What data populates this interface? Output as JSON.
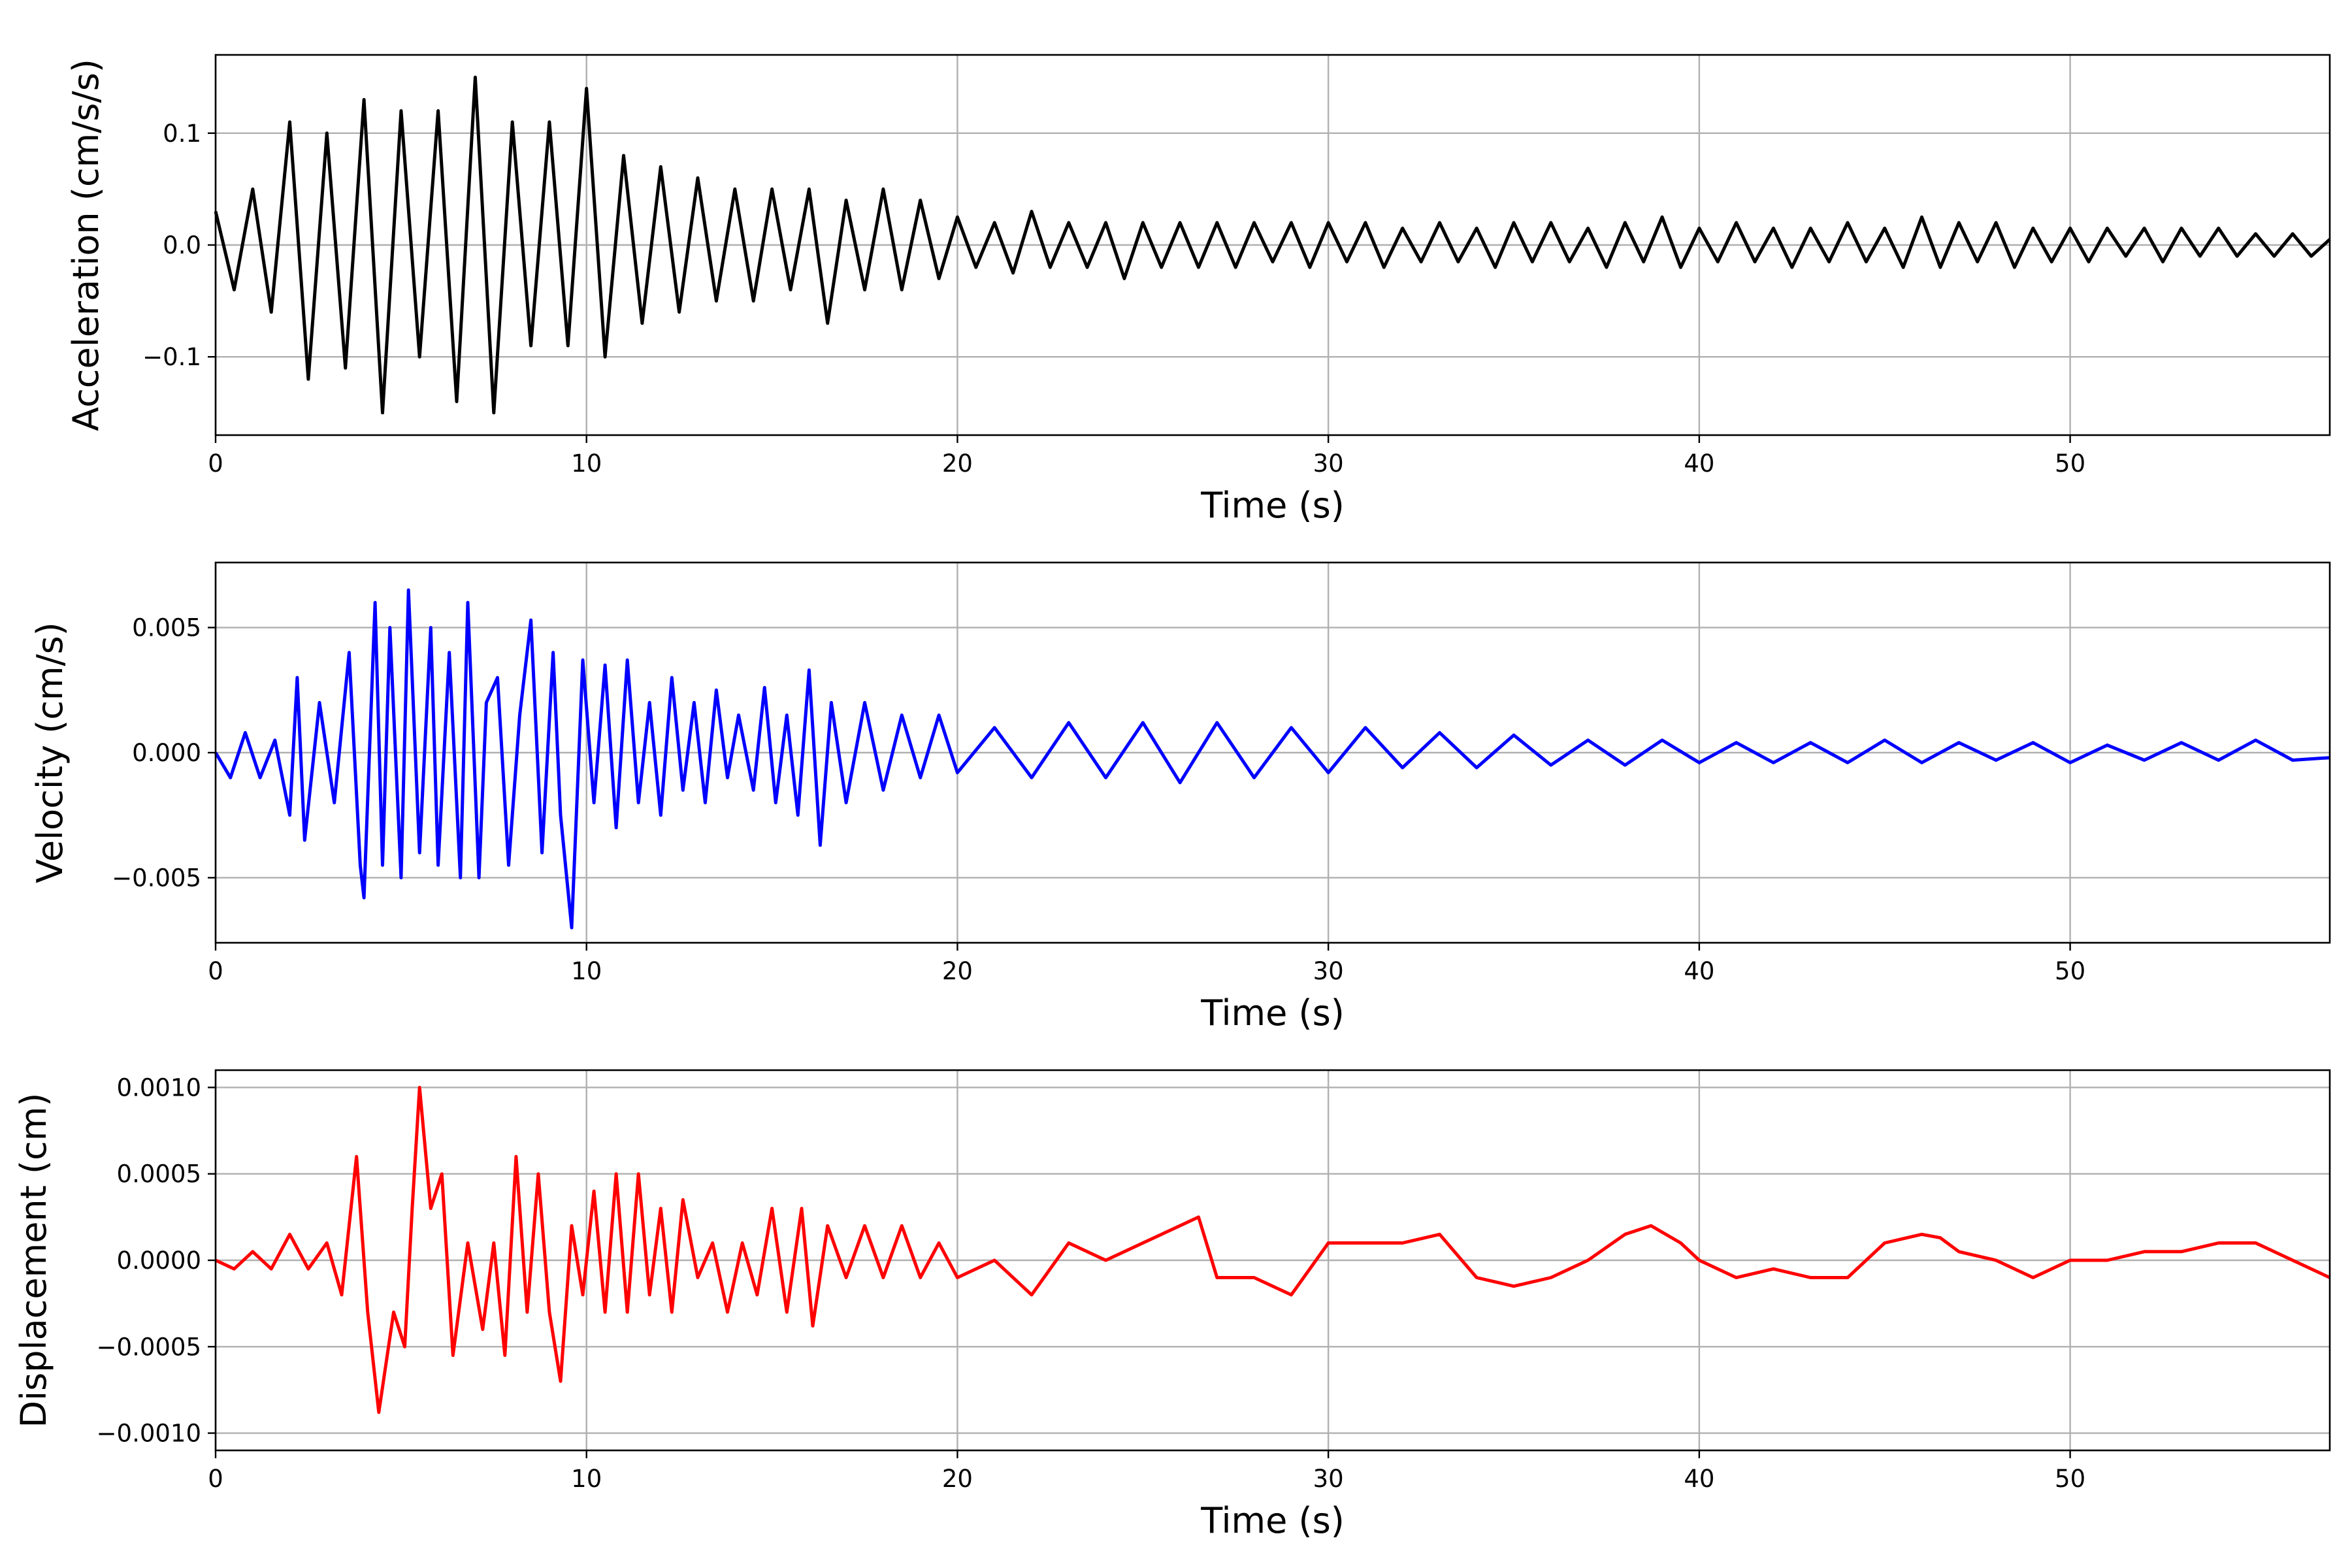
{
  "chart_data": [
    {
      "type": "line",
      "title": "",
      "xlabel": "Time (s)",
      "ylabel": "Acceleration (cm/s/s)",
      "xlim": [
        0,
        57
      ],
      "ylim": [
        -0.17,
        0.17
      ],
      "xticks": [
        0,
        10,
        20,
        30,
        40,
        50
      ],
      "xtick_labels": [
        "0",
        "10",
        "20",
        "30",
        "40",
        "50"
      ],
      "yticks": [
        -0.1,
        0.0,
        0.1
      ],
      "ytick_labels": [
        "−0.1",
        "0.0",
        "0.1"
      ],
      "grid": true,
      "color": "#000000",
      "series": [
        {
          "x": [
            0.0,
            0.5,
            1.0,
            1.5,
            2.0,
            2.5,
            3.0,
            3.5,
            4.0,
            4.5,
            5.0,
            5.5,
            6.0,
            6.5,
            7.0,
            7.5,
            8.0,
            8.5,
            9.0,
            9.5,
            10.0,
            10.5,
            11.0,
            11.5,
            12.0,
            12.5,
            13.0,
            13.5,
            14.0,
            14.5,
            15.0,
            15.5,
            16.0,
            16.5,
            17.0,
            17.5,
            18.0,
            18.5,
            19.0,
            19.5,
            20.0,
            20.5,
            21.0,
            21.5,
            22.0,
            22.5,
            23.0,
            23.5,
            24.0,
            24.5,
            25.0,
            25.5,
            26.0,
            26.5,
            27.0,
            27.5,
            28.0,
            28.5,
            29.0,
            29.5,
            30.0,
            30.5,
            31.0,
            31.5,
            32.0,
            32.5,
            33.0,
            33.5,
            34.0,
            34.5,
            35.0,
            35.5,
            36.0,
            36.5,
            37.0,
            37.5,
            38.0,
            38.5,
            39.0,
            39.5,
            40.0,
            40.5,
            41.0,
            41.5,
            42.0,
            42.5,
            43.0,
            43.5,
            44.0,
            44.5,
            45.0,
            45.5,
            46.0,
            46.5,
            47.0,
            47.5,
            48.0,
            48.5,
            49.0,
            49.5,
            50.0,
            50.5,
            51.0,
            51.5,
            52.0,
            52.5,
            53.0,
            53.5,
            54.0,
            54.5,
            55.0,
            55.5,
            56.0,
            56.5,
            57.0
          ],
          "y": [
            0.03,
            -0.04,
            0.05,
            -0.06,
            0.11,
            -0.12,
            0.1,
            -0.11,
            0.13,
            -0.15,
            0.12,
            -0.1,
            0.12,
            -0.14,
            0.15,
            -0.15,
            0.11,
            -0.09,
            0.11,
            -0.09,
            0.14,
            -0.1,
            0.08,
            -0.07,
            0.07,
            -0.06,
            0.06,
            -0.05,
            0.05,
            -0.05,
            0.05,
            -0.04,
            0.05,
            -0.07,
            0.04,
            -0.04,
            0.05,
            -0.04,
            0.04,
            -0.03,
            0.025,
            -0.02,
            0.02,
            -0.025,
            0.03,
            -0.02,
            0.02,
            -0.02,
            0.02,
            -0.03,
            0.02,
            -0.02,
            0.02,
            -0.02,
            0.02,
            -0.02,
            0.02,
            -0.015,
            0.02,
            -0.02,
            0.02,
            -0.015,
            0.02,
            -0.02,
            0.015,
            -0.015,
            0.02,
            -0.015,
            0.015,
            -0.02,
            0.02,
            -0.015,
            0.02,
            -0.015,
            0.015,
            -0.02,
            0.02,
            -0.015,
            0.025,
            -0.02,
            0.015,
            -0.015,
            0.02,
            -0.015,
            0.015,
            -0.02,
            0.015,
            -0.015,
            0.02,
            -0.015,
            0.015,
            -0.02,
            0.025,
            -0.02,
            0.02,
            -0.015,
            0.02,
            -0.02,
            0.015,
            -0.015,
            0.015,
            -0.015,
            0.015,
            -0.01,
            0.015,
            -0.015,
            0.015,
            -0.01,
            0.015,
            -0.01,
            0.01,
            -0.01,
            0.01,
            -0.01,
            0.005
          ]
        }
      ]
    },
    {
      "type": "line",
      "title": "",
      "xlabel": "Time (s)",
      "ylabel": "Velocity (cm/s)",
      "xlim": [
        0,
        57
      ],
      "ylim": [
        -0.0076,
        0.0076
      ],
      "xticks": [
        0,
        10,
        20,
        30,
        40,
        50
      ],
      "xtick_labels": [
        "0",
        "10",
        "20",
        "30",
        "40",
        "50"
      ],
      "yticks": [
        -0.005,
        0.0,
        0.005
      ],
      "ytick_labels": [
        "−0.005",
        "0.000",
        "0.005"
      ],
      "grid": true,
      "color": "#0000ff",
      "series": [
        {
          "x": [
            0.0,
            0.4,
            0.8,
            1.2,
            1.6,
            2.0,
            2.2,
            2.4,
            2.8,
            3.2,
            3.6,
            3.9,
            4.0,
            4.3,
            4.5,
            4.7,
            5.0,
            5.2,
            5.5,
            5.8,
            6.0,
            6.3,
            6.6,
            6.8,
            7.1,
            7.3,
            7.6,
            7.9,
            8.2,
            8.5,
            8.8,
            9.1,
            9.3,
            9.6,
            9.9,
            10.2,
            10.5,
            10.8,
            11.1,
            11.4,
            11.7,
            12.0,
            12.3,
            12.6,
            12.9,
            13.2,
            13.5,
            13.8,
            14.1,
            14.5,
            14.8,
            15.1,
            15.4,
            15.7,
            16.0,
            16.3,
            16.6,
            17.0,
            17.5,
            18.0,
            18.5,
            19.0,
            19.5,
            20.0,
            21.0,
            22.0,
            23.0,
            24.0,
            25.0,
            26.0,
            27.0,
            28.0,
            29.0,
            30.0,
            31.0,
            32.0,
            33.0,
            34.0,
            35.0,
            36.0,
            37.0,
            38.0,
            39.0,
            40.0,
            41.0,
            42.0,
            43.0,
            44.0,
            45.0,
            46.0,
            47.0,
            48.0,
            49.0,
            50.0,
            51.0,
            52.0,
            53.0,
            54.0,
            55.0,
            56.0,
            57.0
          ],
          "y": [
            0.0,
            -0.001,
            0.0008,
            -0.001,
            0.0005,
            -0.0025,
            0.003,
            -0.0035,
            0.002,
            -0.002,
            0.004,
            -0.0045,
            -0.0058,
            0.006,
            -0.0045,
            0.005,
            -0.005,
            0.0065,
            -0.004,
            0.005,
            -0.0045,
            0.004,
            -0.005,
            0.006,
            -0.005,
            0.002,
            0.003,
            -0.0045,
            0.0015,
            0.0053,
            -0.004,
            0.004,
            -0.0025,
            -0.007,
            0.0037,
            -0.002,
            0.0035,
            -0.003,
            0.0037,
            -0.002,
            0.002,
            -0.0025,
            0.003,
            -0.0015,
            0.002,
            -0.002,
            0.0025,
            -0.001,
            0.0015,
            -0.0015,
            0.0026,
            -0.002,
            0.0015,
            -0.0025,
            0.0033,
            -0.0037,
            0.002,
            -0.002,
            0.002,
            -0.0015,
            0.0015,
            -0.001,
            0.0015,
            -0.0008,
            0.001,
            -0.001,
            0.0012,
            -0.001,
            0.0012,
            -0.0012,
            0.0012,
            -0.001,
            0.001,
            -0.0008,
            0.001,
            -0.0006,
            0.0008,
            -0.0006,
            0.0007,
            -0.0005,
            0.0005,
            -0.0005,
            0.0005,
            -0.0004,
            0.0004,
            -0.0004,
            0.0004,
            -0.0004,
            0.0005,
            -0.0004,
            0.0004,
            -0.0003,
            0.0004,
            -0.0004,
            0.0003,
            -0.0003,
            0.0004,
            -0.0003,
            0.0005,
            -0.0003,
            -0.0002
          ]
        }
      ]
    },
    {
      "type": "line",
      "title": "",
      "xlabel": "Time (s)",
      "ylabel": "Displacement (cm)",
      "xlim": [
        0,
        57
      ],
      "ylim": [
        -0.0011,
        0.0011
      ],
      "xticks": [
        0,
        10,
        20,
        30,
        40,
        50
      ],
      "xtick_labels": [
        "0",
        "10",
        "20",
        "30",
        "40",
        "50"
      ],
      "yticks": [
        -0.001,
        -0.0005,
        0.0,
        0.0005,
        0.001
      ],
      "ytick_labels": [
        "−0.0010",
        "−0.0005",
        "0.0000",
        "0.0005",
        "0.0010"
      ],
      "grid": true,
      "color": "#ff0000",
      "series": [
        {
          "x": [
            0.0,
            0.5,
            1.0,
            1.5,
            2.0,
            2.5,
            3.0,
            3.4,
            3.8,
            4.1,
            4.4,
            4.8,
            5.1,
            5.3,
            5.5,
            5.8,
            6.1,
            6.4,
            6.8,
            7.2,
            7.5,
            7.8,
            8.1,
            8.4,
            8.7,
            9.0,
            9.3,
            9.6,
            9.9,
            10.2,
            10.5,
            10.8,
            11.1,
            11.4,
            11.7,
            12.0,
            12.3,
            12.6,
            13.0,
            13.4,
            13.8,
            14.2,
            14.6,
            15.0,
            15.4,
            15.8,
            16.1,
            16.5,
            17.0,
            17.5,
            18.0,
            18.5,
            19.0,
            19.5,
            20.0,
            21.0,
            22.0,
            23.0,
            24.0,
            25.0,
            26.0,
            26.5,
            27.0,
            28.0,
            29.0,
            30.0,
            31.0,
            32.0,
            33.0,
            34.0,
            35.0,
            36.0,
            37.0,
            38.0,
            38.7,
            39.5,
            40.0,
            41.0,
            42.0,
            43.0,
            44.0,
            45.0,
            46.0,
            46.5,
            47.0,
            48.0,
            49.0,
            50.0,
            51.0,
            52.0,
            53.0,
            54.0,
            55.0,
            56.0,
            57.0
          ],
          "y": [
            0.0,
            -5e-05,
            5e-05,
            -5e-05,
            0.00015,
            -5e-05,
            0.0001,
            -0.0002,
            0.0006,
            -0.0003,
            -0.00088,
            -0.0003,
            -0.0005,
            0.0003,
            0.001,
            0.0003,
            0.0005,
            -0.00055,
            0.0001,
            -0.0004,
            0.0001,
            -0.00055,
            0.0006,
            -0.0003,
            0.0005,
            -0.0003,
            -0.0007,
            0.0002,
            -0.0002,
            0.0004,
            -0.0003,
            0.0005,
            -0.0003,
            0.0005,
            -0.0002,
            0.0003,
            -0.0003,
            0.00035,
            -0.0001,
            0.0001,
            -0.0003,
            0.0001,
            -0.0002,
            0.0003,
            -0.0003,
            0.0003,
            -0.00038,
            0.0002,
            -0.0001,
            0.0002,
            -0.0001,
            0.0002,
            -0.0001,
            0.0001,
            -0.0001,
            0.0,
            -0.0002,
            0.0001,
            0.0,
            0.0001,
            0.0002,
            0.00025,
            -0.0001,
            -0.0001,
            -0.0002,
            0.0001,
            0.0001,
            0.0001,
            0.00015,
            -0.0001,
            -0.00015,
            -0.0001,
            0.0,
            0.00015,
            0.0002,
            0.0001,
            0.0,
            -0.0001,
            -5e-05,
            -0.0001,
            -0.0001,
            0.0001,
            0.00015,
            0.00013,
            5e-05,
            0.0,
            -0.0001,
            0.0,
            0.0,
            5e-05,
            5e-05,
            0.0001,
            0.0001,
            0.0,
            -0.0001
          ]
        }
      ]
    }
  ]
}
